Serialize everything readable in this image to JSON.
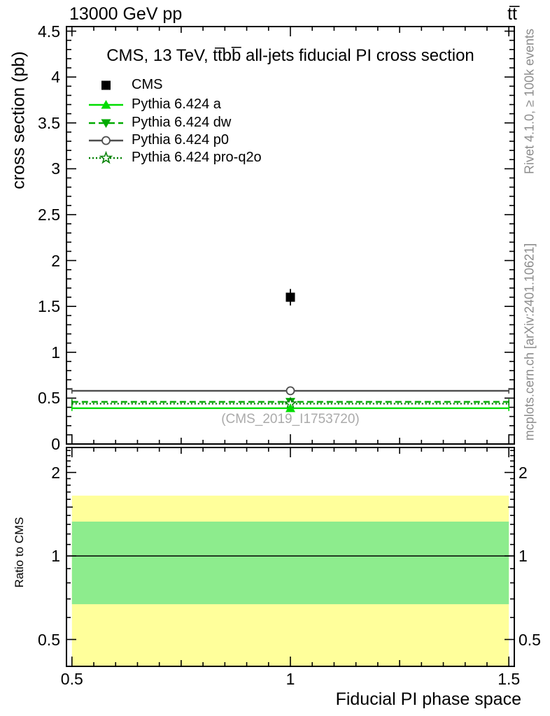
{
  "header": {
    "beam": "13000 GeV pp",
    "process": "tt̅"
  },
  "panel_title": "CMS, 13 TeV, tt̅bb̅ all-jets fiducial PI cross section",
  "watermark": "(CMS_2019_I1753720)",
  "side_notes": {
    "generator": "Rivet 4.1.0, ≥ 100k events",
    "source": "mcplots.cern.ch [arXiv:2401.10621]"
  },
  "axis_labels": {
    "main_y": "cross section (pb)",
    "ratio_y": "Ratio to CMS",
    "x": "Fiducial PI phase space"
  },
  "legend": {
    "items": [
      {
        "label": "CMS",
        "marker": "square",
        "line": "none",
        "color": "#000000"
      },
      {
        "label": "Pythia 6.424 a",
        "marker": "triangle-up",
        "line": "solid",
        "color": "#00dd00"
      },
      {
        "label": "Pythia 6.424 dw",
        "marker": "triangle-down",
        "line": "dashed",
        "color": "#00aa00"
      },
      {
        "label": "Pythia 6.424 p0",
        "marker": "circle-open",
        "line": "solid",
        "color": "#4d4d4d"
      },
      {
        "label": "Pythia 6.424 pro-q2o",
        "marker": "star-open",
        "line": "dotted",
        "color": "#008000"
      }
    ]
  },
  "chart_data": {
    "type": "scatter",
    "title": "CMS, 13 TeV, tt̅bb̅ all-jets fiducial PI cross section",
    "xlabel": "Fiducial PI phase space",
    "ylabel": "cross section (pb)",
    "x_range_drawn": [
      0.4875,
      1.5125
    ],
    "bin_x": [
      0.5,
      1.5
    ],
    "xticks": [
      0.5,
      1,
      1.5
    ],
    "x_minor_step": 0.05,
    "main_panel": {
      "scale": "linear",
      "ylim": [
        0,
        4.55
      ],
      "yticks": [
        0,
        0.5,
        1,
        1.5,
        2,
        2.5,
        3,
        3.5,
        4,
        4.5
      ],
      "y_minor_step": 0.1,
      "series": [
        {
          "name": "CMS",
          "x": 1,
          "y": 1.6,
          "yerr": 0.09,
          "marker": "square",
          "line": "none",
          "color": "#000000"
        },
        {
          "name": "Pythia 6.424 p0",
          "x": 1,
          "y": 0.58,
          "yerr": 0.03,
          "marker": "circle-open",
          "line": "solid",
          "color": "#4d4d4d"
        },
        {
          "name": "Pythia 6.424 dw",
          "x": 1,
          "y": 0.46,
          "yerr": 0.02,
          "marker": "triangle-down",
          "line": "dashed",
          "color": "#00aa00"
        },
        {
          "name": "Pythia 6.424 pro-q2o",
          "x": 1,
          "y": 0.44,
          "yerr": 0.02,
          "marker": "star-open",
          "line": "dotted",
          "color": "#008000"
        },
        {
          "name": "Pythia 6.424 a",
          "x": 1,
          "y": 0.39,
          "yerr": 0.02,
          "marker": "triangle-up",
          "line": "solid",
          "color": "#00dd00"
        }
      ]
    },
    "ratio_panel": {
      "scale": "log",
      "ylim": [
        0.4,
        2.46
      ],
      "yticks": [
        0.5,
        1,
        2
      ],
      "reference_line": 1,
      "bands": [
        {
          "name": "total-uncertainty",
          "range": [
            0.35,
            1.65
          ],
          "color": "#ffff9b"
        },
        {
          "name": "stat-uncertainty",
          "range": [
            0.67,
            1.33
          ],
          "color": "#8dec8d"
        }
      ]
    }
  }
}
